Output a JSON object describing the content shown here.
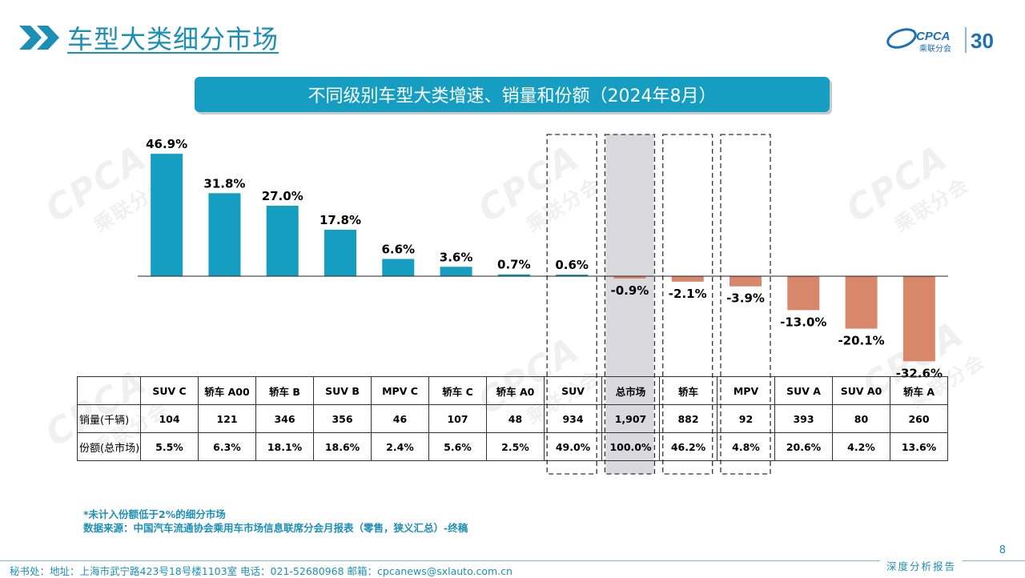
{
  "header": {
    "title": "车型大类细分市场",
    "logo_text": "CPCA",
    "logo_sub": "乘联分会",
    "logo_badge": "30"
  },
  "banner": {
    "text": "不同级别车型大类增速、销量和份额（2024年8月）"
  },
  "colors": {
    "positive": "#159ec2",
    "negative": "#d9876a",
    "accent": "#1d8fb6",
    "highlight": "#d9d9de"
  },
  "watermark": {
    "text": "CPCA",
    "sub": "乘联分会"
  },
  "chart_data": {
    "type": "bar",
    "title": "不同级别车型大类增速、销量和份额（2024年8月）",
    "categories": [
      "SUV C",
      "轿车 A00",
      "轿车 B",
      "SUV B",
      "MPV C",
      "轿车 C",
      "轿车 A0",
      "SUV",
      "总市场",
      "轿车",
      "MPV",
      "SUV A",
      "SUV A0",
      "轿车 A"
    ],
    "series": [
      {
        "name": "增速",
        "values": [
          46.9,
          31.8,
          27.0,
          17.8,
          6.6,
          3.6,
          0.7,
          0.6,
          -0.9,
          -2.1,
          -3.9,
          -13.0,
          -20.1,
          -32.6
        ]
      }
    ],
    "labels": [
      "46.9%",
      "31.8%",
      "27.0%",
      "17.8%",
      "6.6%",
      "3.6%",
      "0.7%",
      "0.6%",
      "-0.9%",
      "-2.1%",
      "-3.9%",
      "-13.0%",
      "-20.1%",
      "-32.6%"
    ],
    "ylim": [
      -35,
      50
    ],
    "grid": false,
    "highlighted": [
      "SUV",
      "总市场",
      "轿车",
      "MPV"
    ],
    "shaded": "总市场"
  },
  "table": {
    "rows": [
      {
        "label": "销量(千辆)",
        "values": [
          "104",
          "121",
          "346",
          "356",
          "46",
          "107",
          "48",
          "934",
          "1,907",
          "882",
          "92",
          "393",
          "80",
          "260"
        ]
      },
      {
        "label": "份额(总市场)",
        "values": [
          "5.5%",
          "6.3%",
          "18.1%",
          "18.6%",
          "2.4%",
          "5.6%",
          "2.5%",
          "49.0%",
          "100.0%",
          "46.2%",
          "4.8%",
          "20.6%",
          "4.2%",
          "13.6%"
        ]
      }
    ]
  },
  "notes": {
    "line1": "*未计入份额低于2%的细分市场",
    "line2": "数据来源：中国汽车流通协会乘用车市场信息联席分会月报表（零售，狭义汇总）-终稿"
  },
  "footer": {
    "address": "秘书处：地址：上海市武宁路423号18号楼1103室  电话：021-52680968  邮箱：cpcanews@sxlauto.com.cn",
    "right_label": "深度分析报告",
    "page_number": "8"
  }
}
